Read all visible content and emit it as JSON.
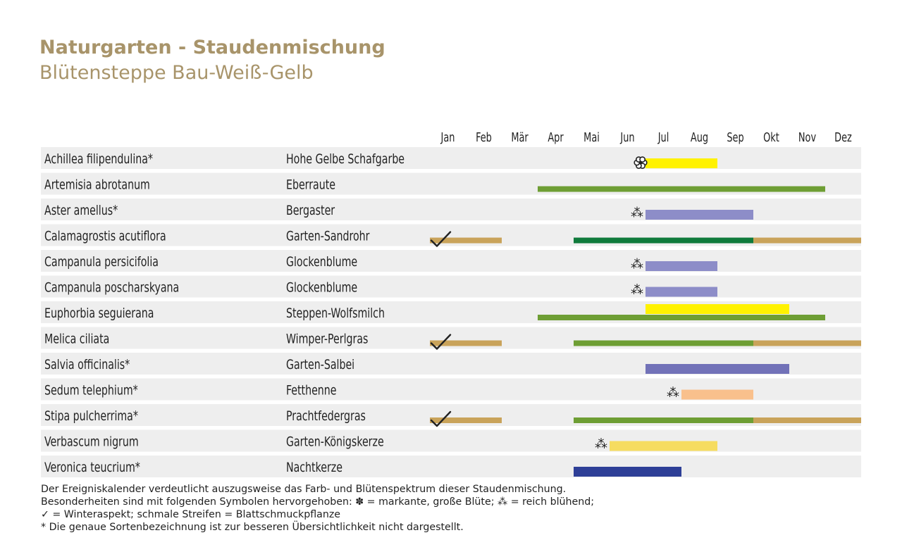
{
  "title": "Naturgarten - Staudenmischung",
  "subtitle": "Blütensteppe Bau-Weiß-Gelb",
  "chart_data": {
    "type": "table",
    "months": [
      "Jan",
      "Feb",
      "Mär",
      "Apr",
      "Mai",
      "Jun",
      "Jul",
      "Aug",
      "Sep",
      "Okt",
      "Nov",
      "Dez"
    ],
    "rows": [
      {
        "latin": "Achillea filipendulina*",
        "german": "Hohe Gelbe Schafgarbe",
        "symbol": "flower",
        "symbol_month": 6,
        "check": false,
        "bars": [
          {
            "kind": "flower",
            "start": 7,
            "end": 8,
            "color": "#fff200"
          }
        ]
      },
      {
        "latin": "Artemisia abrotanum",
        "german": "Eberraute",
        "symbol": "",
        "symbol_month": 0,
        "check": false,
        "bars": [
          {
            "kind": "leaf",
            "start": 4,
            "end": 11,
            "color": "#6e9e34"
          }
        ]
      },
      {
        "latin": "Aster amellus*",
        "german": "Bergaster",
        "symbol": "rich",
        "symbol_month": 6,
        "check": false,
        "bars": [
          {
            "kind": "flower",
            "start": 7,
            "end": 9,
            "color": "#8d8dc8"
          }
        ]
      },
      {
        "latin": "Calamagrostis acutiflora",
        "german": "Garten-Sandrohr",
        "symbol": "",
        "symbol_month": 0,
        "check": true,
        "bars": [
          {
            "kind": "leaf",
            "start": 1,
            "end": 2,
            "color": "#c9a35a"
          },
          {
            "kind": "leaf",
            "start": 5,
            "end": 9,
            "color": "#0f7a3b"
          },
          {
            "kind": "leaf",
            "start": 10,
            "end": 12,
            "color": "#c9a35a"
          }
        ]
      },
      {
        "latin": "Campanula persicifolia",
        "german": "Glockenblume",
        "symbol": "rich",
        "symbol_month": 6,
        "check": false,
        "bars": [
          {
            "kind": "flower",
            "start": 7,
            "end": 8,
            "color": "#8d8dc8"
          }
        ]
      },
      {
        "latin": "Campanula poscharskyana",
        "german": "Glockenblume",
        "symbol": "rich",
        "symbol_month": 6,
        "check": false,
        "bars": [
          {
            "kind": "flower",
            "start": 7,
            "end": 8,
            "color": "#8d8dc8"
          }
        ]
      },
      {
        "latin": "Euphorbia seguierana",
        "german": "Steppen-Wolfsmilch",
        "symbol": "",
        "symbol_month": 0,
        "check": false,
        "bars": [
          {
            "kind": "flower",
            "start": 7,
            "end": 10,
            "color": "#fff200"
          },
          {
            "kind": "leaf",
            "start": 4,
            "end": 11,
            "color": "#6e9e34"
          }
        ]
      },
      {
        "latin": "Melica ciliata",
        "german": "Wimper-Perlgras",
        "symbol": "",
        "symbol_month": 0,
        "check": true,
        "bars": [
          {
            "kind": "leaf",
            "start": 1,
            "end": 2,
            "color": "#c9a35a"
          },
          {
            "kind": "leaf",
            "start": 5,
            "end": 9,
            "color": "#6e9e34"
          },
          {
            "kind": "leaf",
            "start": 10,
            "end": 12,
            "color": "#c9a35a"
          }
        ]
      },
      {
        "latin": "Salvia officinalis*",
        "german": "Garten-Salbei",
        "symbol": "",
        "symbol_month": 0,
        "check": false,
        "bars": [
          {
            "kind": "flower",
            "start": 7,
            "end": 10,
            "color": "#7272b8"
          }
        ]
      },
      {
        "latin": "Sedum telephium*",
        "german": "Fetthenne",
        "symbol": "rich",
        "symbol_month": 7,
        "check": false,
        "bars": [
          {
            "kind": "flower",
            "start": 8,
            "end": 9,
            "color": "#f9c08c"
          }
        ]
      },
      {
        "latin": "Stipa pulcherrima*",
        "german": "Prachtfedergras",
        "symbol": "",
        "symbol_month": 0,
        "check": true,
        "bars": [
          {
            "kind": "leaf",
            "start": 1,
            "end": 2,
            "color": "#c9a35a"
          },
          {
            "kind": "leaf",
            "start": 5,
            "end": 9,
            "color": "#6e9e34"
          },
          {
            "kind": "leaf",
            "start": 10,
            "end": 12,
            "color": "#c9a35a"
          }
        ]
      },
      {
        "latin": "Verbascum nigrum",
        "german": "Garten-Königskerze",
        "symbol": "rich",
        "symbol_month": 5,
        "check": false,
        "bars": [
          {
            "kind": "flower",
            "start": 6,
            "end": 8,
            "color": "#f6dc60"
          }
        ]
      },
      {
        "latin": "Veronica teucrium*",
        "german": "Nachtkerze",
        "symbol": "",
        "symbol_month": 0,
        "check": false,
        "bars": [
          {
            "kind": "flower",
            "start": 5,
            "end": 7,
            "color": "#2e3f97"
          }
        ]
      }
    ]
  },
  "notes": [
    "Der Ereigniskalender verdeutlicht auszugsweise das Farb- und Blütenspektrum dieser Staudenmischung.",
    "Besonderheiten sind mit folgenden Symbolen hervorgehoben: ✽ = markante, große Blüte; ⁂ = reich blühend;",
    "✓ = Winteraspekt; schmale Streifen = Blattschmuckpflanze",
    "* Die genaue Sortenbezeichnung ist zur besseren Übersichtlichkeit nicht dargestellt."
  ]
}
